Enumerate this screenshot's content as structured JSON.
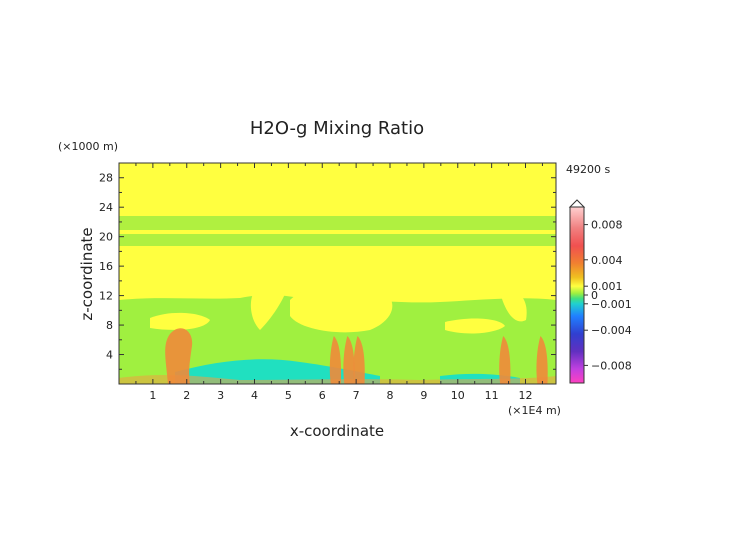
{
  "chart_data": {
    "type": "heatmap",
    "title": "H2O-g Mixing Ratio",
    "xlabel": "x-coordinate",
    "ylabel": "z-coordinate",
    "x_unit": "(×1E4 m)",
    "y_unit": "(×1000 m)",
    "time_label": "49200 s",
    "xlim": [
      0,
      12.9
    ],
    "ylim": [
      0,
      30
    ],
    "x_ticks": [
      "1",
      "2",
      "3",
      "4",
      "5",
      "6",
      "7",
      "8",
      "9",
      "10",
      "11",
      "12"
    ],
    "x_tick_values": [
      1,
      2,
      3,
      4,
      5,
      6,
      7,
      8,
      9,
      10,
      11,
      12
    ],
    "y_ticks": [
      "4",
      "8",
      "12",
      "16",
      "20",
      "24",
      "28"
    ],
    "y_tick_values": [
      4,
      8,
      12,
      16,
      20,
      24,
      28
    ],
    "colorbar": {
      "labels": [
        "0.008",
        "0.004",
        "0.001",
        "0",
        "−0.001",
        "−0.004",
        "−0.008"
      ],
      "label_values": [
        0.008,
        0.004,
        0.001,
        0,
        -0.001,
        -0.004,
        -0.008
      ],
      "range": [
        -0.01,
        0.01
      ]
    },
    "colors": {
      "pos_high": "#f4a0a0",
      "pos_mid": "#f07070",
      "pos_warm": "#f0a040",
      "near_zero_pos": "#ffff40",
      "near_zero": "#a0f040",
      "neg_small": "#20e0c0",
      "neg_mid": "#2080ff",
      "neg_strong": "#4020c0",
      "neg_max": "#ff40c0"
    },
    "fields": {
      "background_upper": "near_zero_pos",
      "band_z_range": [
        20.5,
        22.5
      ],
      "lower_background": "near_zero",
      "plume_x": [
        1.8,
        6.4,
        6.8,
        7.1,
        11.4,
        12.5
      ],
      "negative_region_x": [
        3.5,
        6.0
      ]
    }
  }
}
